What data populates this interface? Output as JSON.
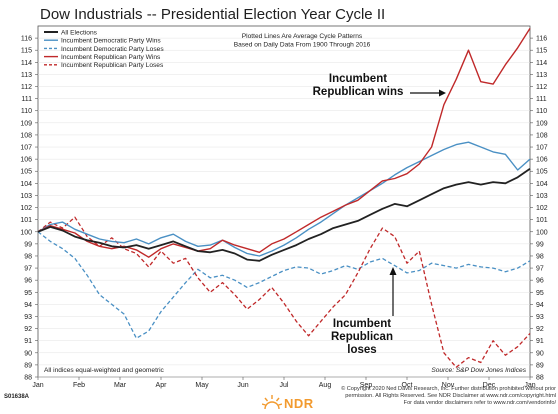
{
  "chart_data": {
    "type": "line",
    "title": "Dow Industrials -- Presidential Election Year Cycle II",
    "subtitle_lines": [
      "Plotted Lines Are Average Cycle Patterns",
      "Based on Daily Data From 1900 Through 2016"
    ],
    "x_tick_labels": [
      "Jan",
      "Feb",
      "Mar",
      "Apr",
      "May",
      "Jun",
      "Jul",
      "Aug",
      "Sep",
      "Oct",
      "Nov",
      "Dec",
      "Jan"
    ],
    "y_tick_labels": [
      "88",
      "89",
      "90",
      "91",
      "92",
      "93",
      "94",
      "95",
      "96",
      "97",
      "98",
      "99",
      "100",
      "101",
      "102",
      "103",
      "104",
      "105",
      "106",
      "107",
      "108",
      "109",
      "110",
      "111",
      "112",
      "113",
      "114",
      "115",
      "116"
    ],
    "x_unit": "month index (0 = start of Jan, 12 = end of Dec)",
    "ylim": [
      88,
      117
    ],
    "xlim": [
      0,
      12
    ],
    "legend_position": "top-left",
    "series": [
      {
        "name": "All Elections",
        "color": "#222222",
        "dash": "solid",
        "width": 1.8,
        "x": [
          0,
          0.3,
          0.6,
          0.9,
          1.2,
          1.5,
          1.8,
          2.1,
          2.4,
          2.7,
          3.0,
          3.3,
          3.6,
          3.9,
          4.2,
          4.5,
          4.8,
          5.1,
          5.4,
          5.7,
          6.0,
          6.3,
          6.6,
          6.9,
          7.2,
          7.5,
          7.8,
          8.1,
          8.4,
          8.7,
          9.0,
          9.3,
          9.6,
          9.9,
          10.2,
          10.5,
          10.8,
          11.1,
          11.4,
          11.7,
          12.0
        ],
        "y": [
          100.0,
          100.4,
          100.1,
          99.6,
          99.3,
          99.1,
          98.8,
          98.7,
          98.9,
          98.6,
          98.9,
          99.2,
          98.8,
          98.4,
          98.3,
          98.5,
          98.2,
          97.7,
          97.6,
          98.1,
          98.5,
          98.9,
          99.4,
          99.8,
          100.3,
          100.6,
          100.9,
          101.4,
          101.9,
          102.3,
          102.1,
          102.6,
          103.1,
          103.6,
          103.9,
          104.1,
          103.9,
          104.1,
          104.0,
          104.5,
          105.2
        ]
      },
      {
        "name": "Incumbent Democratic Party Wins",
        "color": "#4a90c4",
        "dash": "solid",
        "width": 1.4,
        "x": [
          0,
          0.3,
          0.6,
          0.9,
          1.2,
          1.5,
          1.8,
          2.1,
          2.4,
          2.7,
          3.0,
          3.3,
          3.6,
          3.9,
          4.2,
          4.5,
          4.8,
          5.1,
          5.4,
          5.7,
          6.0,
          6.3,
          6.6,
          6.9,
          7.2,
          7.5,
          7.8,
          8.1,
          8.4,
          8.7,
          9.0,
          9.3,
          9.6,
          9.9,
          10.2,
          10.5,
          10.8,
          11.1,
          11.4,
          11.7,
          12.0
        ],
        "y": [
          100.0,
          100.6,
          100.8,
          100.2,
          99.8,
          99.4,
          99.2,
          99.1,
          99.4,
          99.0,
          99.5,
          99.8,
          99.2,
          98.8,
          98.9,
          99.3,
          98.7,
          98.2,
          98.0,
          98.4,
          98.9,
          99.5,
          100.2,
          100.8,
          101.5,
          102.2,
          102.8,
          103.4,
          104.0,
          104.7,
          105.3,
          105.8,
          106.3,
          106.8,
          107.2,
          107.4,
          107.0,
          106.6,
          106.4,
          105.1,
          106.0
        ]
      },
      {
        "name": "Incumbent Democratic Party Loses",
        "color": "#4a90c4",
        "dash": "dashed",
        "width": 1.3,
        "x": [
          0,
          0.3,
          0.6,
          0.9,
          1.2,
          1.5,
          1.8,
          2.1,
          2.4,
          2.7,
          3.0,
          3.3,
          3.6,
          3.9,
          4.2,
          4.5,
          4.8,
          5.1,
          5.4,
          5.7,
          6.0,
          6.3,
          6.6,
          6.9,
          7.2,
          7.5,
          7.8,
          8.1,
          8.4,
          8.7,
          9.0,
          9.3,
          9.6,
          9.9,
          10.2,
          10.5,
          10.8,
          11.1,
          11.4,
          11.7,
          12.0
        ],
        "y": [
          100.0,
          99.2,
          98.6,
          97.8,
          96.4,
          94.8,
          94.0,
          93.2,
          91.2,
          91.8,
          93.4,
          94.6,
          95.8,
          96.9,
          96.2,
          96.4,
          96.0,
          95.4,
          95.8,
          96.3,
          96.8,
          97.1,
          97.0,
          96.5,
          96.8,
          97.2,
          96.9,
          97.5,
          97.8,
          97.2,
          96.6,
          96.8,
          97.4,
          97.2,
          97.0,
          97.3,
          97.1,
          97.0,
          96.7,
          97.0,
          97.6
        ]
      },
      {
        "name": "Incumbent Republican Party Wins",
        "color": "#c0292a",
        "dash": "solid",
        "width": 1.4,
        "x": [
          0,
          0.3,
          0.6,
          0.9,
          1.2,
          1.5,
          1.8,
          2.1,
          2.4,
          2.7,
          3.0,
          3.3,
          3.6,
          3.9,
          4.2,
          4.5,
          4.8,
          5.1,
          5.4,
          5.7,
          6.0,
          6.3,
          6.6,
          6.9,
          7.2,
          7.5,
          7.8,
          8.1,
          8.4,
          8.7,
          9.0,
          9.3,
          9.6,
          9.9,
          10.2,
          10.5,
          10.8,
          11.1,
          11.4,
          11.7,
          12.0
        ],
        "y": [
          100.0,
          100.5,
          100.2,
          99.9,
          99.2,
          98.8,
          98.6,
          98.8,
          98.5,
          97.9,
          98.6,
          99.0,
          98.7,
          98.4,
          98.6,
          99.3,
          98.9,
          98.6,
          98.3,
          99.0,
          99.4,
          100.0,
          100.6,
          101.2,
          101.7,
          102.2,
          102.6,
          103.4,
          104.2,
          104.4,
          104.8,
          105.6,
          107.0,
          110.5,
          112.6,
          115.0,
          112.4,
          112.2,
          113.8,
          115.2,
          116.8
        ]
      },
      {
        "name": "Incumbent Republican Party Loses",
        "color": "#c0292a",
        "dash": "dashed",
        "width": 1.3,
        "x": [
          0,
          0.3,
          0.6,
          0.9,
          1.2,
          1.5,
          1.8,
          2.1,
          2.4,
          2.7,
          3.0,
          3.3,
          3.6,
          3.9,
          4.2,
          4.5,
          4.8,
          5.1,
          5.4,
          5.7,
          6.0,
          6.3,
          6.6,
          6.9,
          7.2,
          7.5,
          7.8,
          8.1,
          8.4,
          8.7,
          9.0,
          9.3,
          9.6,
          9.9,
          10.2,
          10.5,
          10.8,
          11.1,
          11.4,
          11.7,
          12.0
        ],
        "y": [
          100.0,
          100.8,
          100.3,
          101.2,
          99.6,
          98.8,
          99.5,
          98.6,
          98.2,
          97.1,
          98.4,
          97.4,
          97.8,
          96.2,
          95.0,
          95.8,
          94.8,
          93.6,
          94.4,
          95.4,
          94.1,
          92.6,
          91.4,
          92.6,
          93.8,
          94.8,
          96.6,
          98.6,
          100.3,
          99.6,
          97.4,
          98.4,
          94.0,
          90.0,
          88.8,
          89.6,
          89.2,
          91.0,
          89.8,
          90.5,
          91.6
        ]
      }
    ],
    "annotations": [
      {
        "id": "wins",
        "lines": [
          "Incumbent",
          "Republican wins"
        ]
      },
      {
        "id": "loses",
        "lines": [
          "Incumbent",
          "Republican",
          "loses"
        ]
      }
    ],
    "footnote": "All indices equal-weighted and geometric",
    "source": "Source: S&P Dow Jones Indices",
    "chart_code": "S01638A",
    "copyright_lines": [
      "© Copyright 2020 Ned Davis Research, Inc. Further distribution prohibited without prior",
      "permission. All Rights Reserved. See NDR Disclaimer at www.ndr.com/copyright.html",
      "For data vendor disclaimers refer to www.ndr.com/vendorinfo/"
    ],
    "logo_text": "NDR",
    "logo_color": "#f29a2e"
  }
}
